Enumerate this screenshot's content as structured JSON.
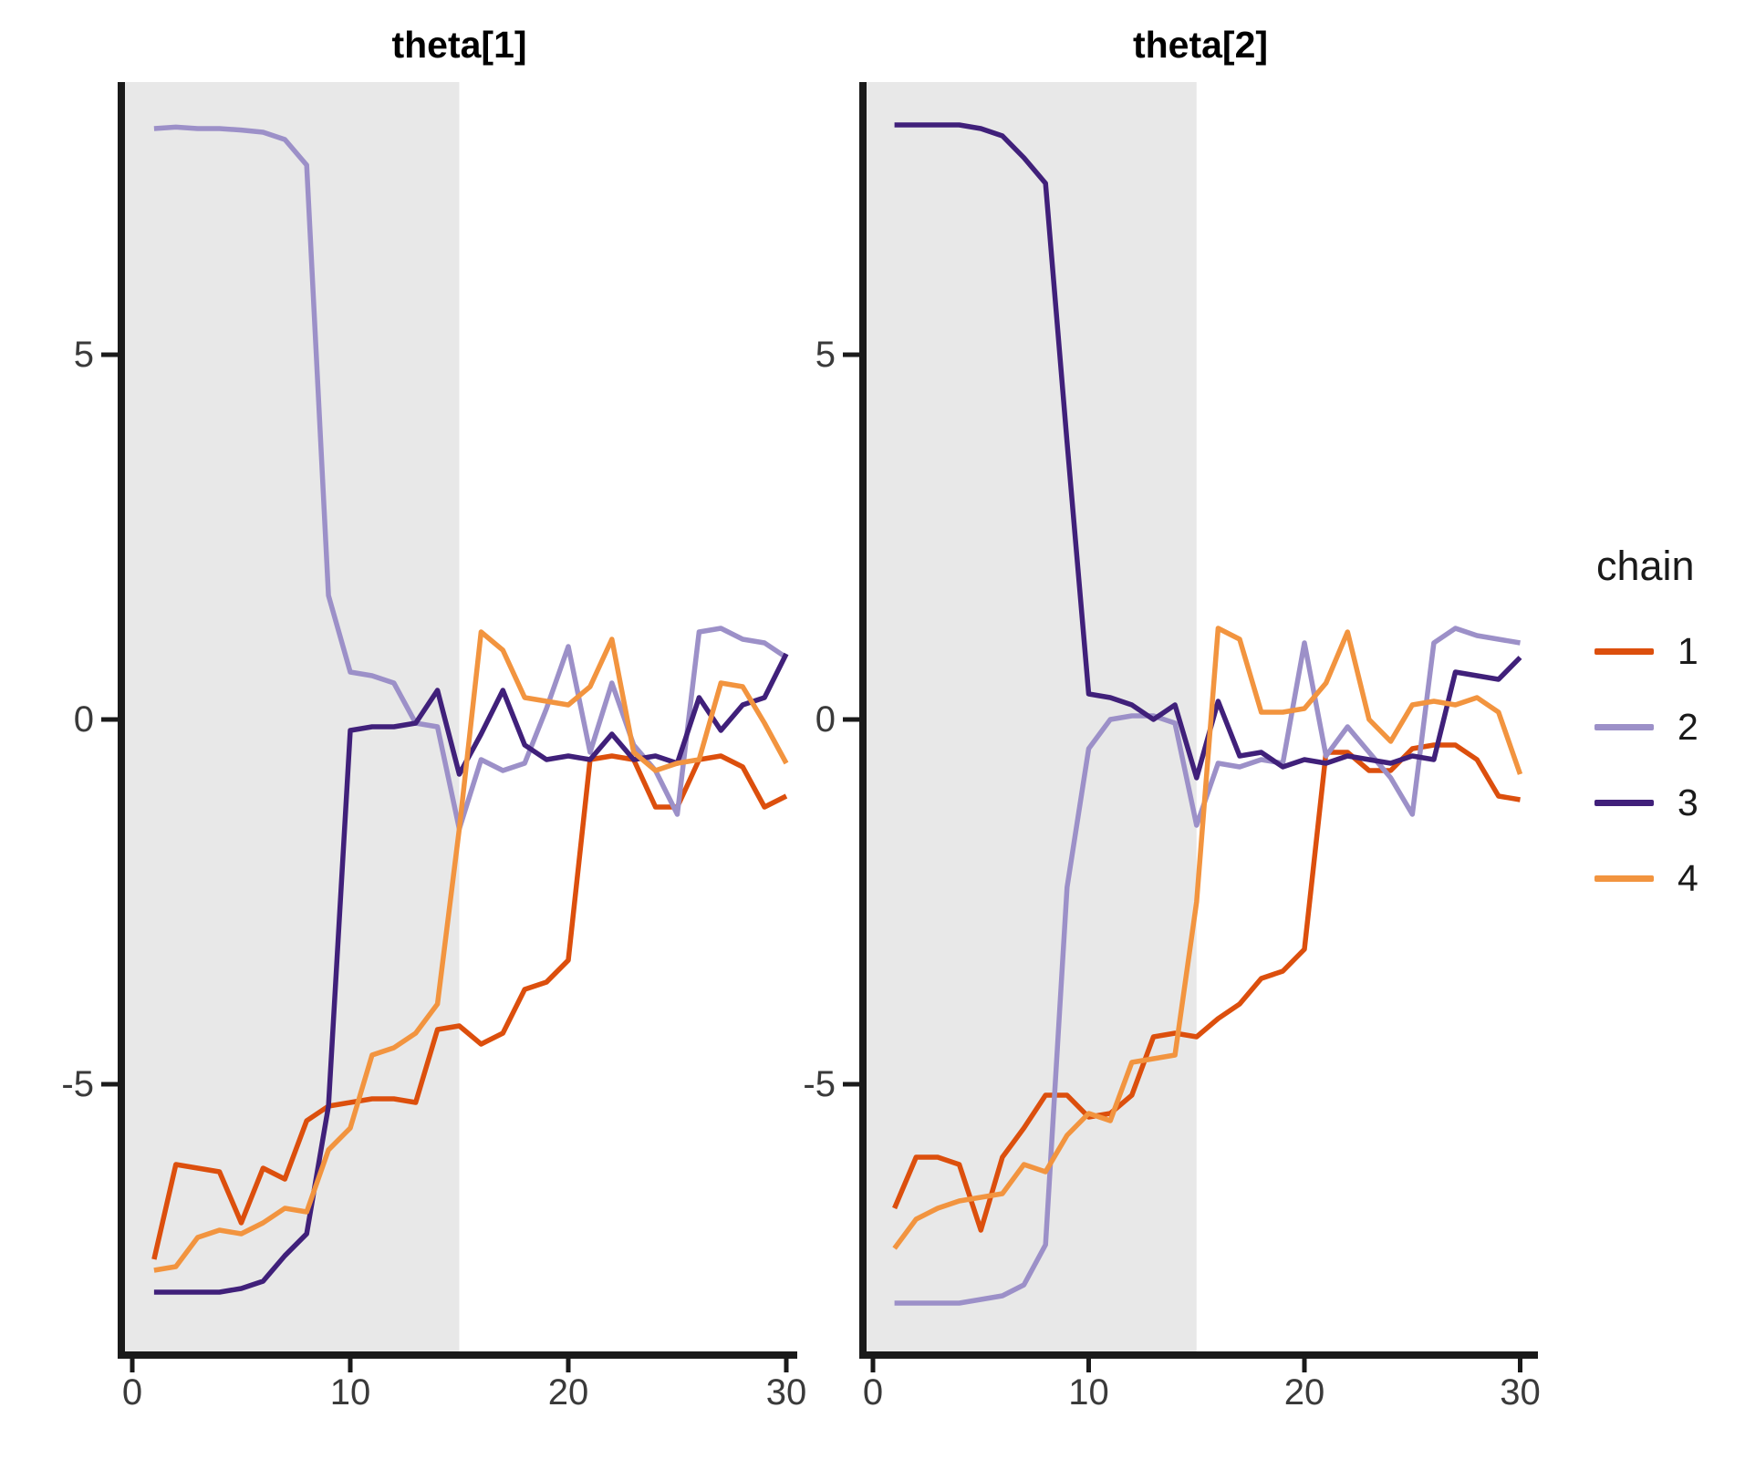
{
  "app": {
    "type": "mcmc-trace-plot",
    "background": "#ffffff"
  },
  "legend": {
    "title": "chain",
    "items": [
      {
        "label": "1",
        "color": "#DC4F0D"
      },
      {
        "label": "2",
        "color": "#9C90C8"
      },
      {
        "label": "3",
        "color": "#40207A"
      },
      {
        "label": "4",
        "color": "#F2943F"
      }
    ]
  },
  "colors": {
    "warmup_background": "#E8E8E8",
    "axis": "#1A1A1A",
    "tick_label": "#3A3A3A",
    "title": "#000000"
  },
  "chart_data": [
    {
      "type": "line",
      "title": "theta[1]",
      "x_first": 1,
      "x_last": 30,
      "xlim": [
        0,
        30
      ],
      "ylim": [
        -8.7,
        8.7
      ],
      "x_tick_labels": [
        "0",
        "10",
        "20",
        "30"
      ],
      "x_tick_values": [
        0,
        10,
        20,
        30
      ],
      "y_tick_labels": [
        "5",
        "0",
        "-5"
      ],
      "y_tick_values": [
        5,
        0,
        -5
      ],
      "warmup_shaded_until_x": 15,
      "grid": false,
      "legend_position": "right",
      "series": [
        {
          "name": "1",
          "color": "#DC4F0D",
          "values": [
            -7.4,
            -6.1,
            -6.15,
            -6.2,
            -6.9,
            -6.15,
            -6.3,
            -5.5,
            -5.3,
            -5.25,
            -5.2,
            -5.2,
            -5.25,
            -4.25,
            -4.2,
            -4.45,
            -4.3,
            -3.7,
            -3.6,
            -3.3,
            -0.55,
            -0.5,
            -0.55,
            -1.2,
            -1.2,
            -0.55,
            -0.5,
            -0.65,
            -1.2,
            -1.05
          ]
        },
        {
          "name": "2",
          "color": "#9C90C8",
          "values": [
            8.1,
            8.12,
            8.1,
            8.1,
            8.08,
            8.05,
            7.95,
            7.6,
            1.7,
            0.65,
            0.6,
            0.5,
            -0.05,
            -0.1,
            -1.5,
            -0.55,
            -0.7,
            -0.6,
            0.15,
            1.0,
            -0.45,
            0.5,
            -0.35,
            -0.7,
            -1.3,
            1.2,
            1.25,
            1.1,
            1.05,
            0.85
          ]
        },
        {
          "name": "3",
          "color": "#40207A",
          "values": [
            -7.85,
            -7.85,
            -7.85,
            -7.85,
            -7.8,
            -7.7,
            -7.35,
            -7.05,
            -5.3,
            -0.15,
            -0.1,
            -0.1,
            -0.05,
            0.4,
            -0.75,
            -0.2,
            0.4,
            -0.35,
            -0.55,
            -0.5,
            -0.55,
            -0.2,
            -0.55,
            -0.5,
            -0.6,
            0.3,
            -0.15,
            0.2,
            0.3,
            0.9
          ]
        },
        {
          "name": "4",
          "color": "#F2943F",
          "values": [
            -7.55,
            -7.5,
            -7.1,
            -7.0,
            -7.05,
            -6.9,
            -6.7,
            -6.75,
            -5.9,
            -5.6,
            -4.6,
            -4.5,
            -4.3,
            -3.9,
            -1.5,
            1.2,
            0.95,
            0.3,
            0.25,
            0.2,
            0.45,
            1.1,
            -0.45,
            -0.7,
            -0.6,
            -0.55,
            0.5,
            0.45,
            -0.05,
            -0.6
          ]
        }
      ]
    },
    {
      "type": "line",
      "title": "theta[2]",
      "x_first": 1,
      "x_last": 30,
      "xlim": [
        0,
        30
      ],
      "ylim": [
        -8.7,
        8.7
      ],
      "x_tick_labels": [
        "0",
        "10",
        "20",
        "30"
      ],
      "x_tick_values": [
        0,
        10,
        20,
        30
      ],
      "y_tick_labels": [
        "5",
        "0",
        "-5"
      ],
      "y_tick_values": [
        5,
        0,
        -5
      ],
      "warmup_shaded_until_x": 15,
      "grid": false,
      "legend_position": "right",
      "series": [
        {
          "name": "1",
          "color": "#DC4F0D",
          "values": [
            -6.7,
            -6.0,
            -6.0,
            -6.1,
            -7.0,
            -6.0,
            -5.6,
            -5.15,
            -5.15,
            -5.45,
            -5.4,
            -5.15,
            -4.35,
            -4.3,
            -4.35,
            -4.1,
            -3.9,
            -3.55,
            -3.45,
            -3.15,
            -0.45,
            -0.45,
            -0.7,
            -0.7,
            -0.4,
            -0.35,
            -0.35,
            -0.55,
            -1.05,
            -1.1
          ]
        },
        {
          "name": "2",
          "color": "#9C90C8",
          "values": [
            -8.0,
            -8.0,
            -8.0,
            -8.0,
            -7.95,
            -7.9,
            -7.75,
            -7.2,
            -2.3,
            -0.4,
            0.0,
            0.05,
            0.05,
            -0.05,
            -1.45,
            -0.6,
            -0.65,
            -0.55,
            -0.6,
            1.05,
            -0.5,
            -0.1,
            -0.45,
            -0.8,
            -1.3,
            1.05,
            1.25,
            1.15,
            1.1,
            1.05
          ]
        },
        {
          "name": "3",
          "color": "#40207A",
          "values": [
            8.15,
            8.15,
            8.15,
            8.15,
            8.1,
            8.0,
            7.7,
            7.35,
            3.8,
            0.35,
            0.3,
            0.2,
            0.0,
            0.2,
            -0.8,
            0.25,
            -0.5,
            -0.45,
            -0.65,
            -0.55,
            -0.6,
            -0.5,
            -0.55,
            -0.6,
            -0.5,
            -0.55,
            0.65,
            0.6,
            0.55,
            0.85
          ]
        },
        {
          "name": "4",
          "color": "#F2943F",
          "values": [
            -7.25,
            -6.85,
            -6.7,
            -6.6,
            -6.55,
            -6.5,
            -6.1,
            -6.2,
            -5.7,
            -5.4,
            -5.5,
            -4.7,
            -4.65,
            -4.6,
            -2.5,
            1.25,
            1.1,
            0.1,
            0.1,
            0.15,
            0.5,
            1.2,
            0.0,
            -0.3,
            0.2,
            0.25,
            0.2,
            0.3,
            0.1,
            -0.75
          ]
        }
      ]
    }
  ]
}
